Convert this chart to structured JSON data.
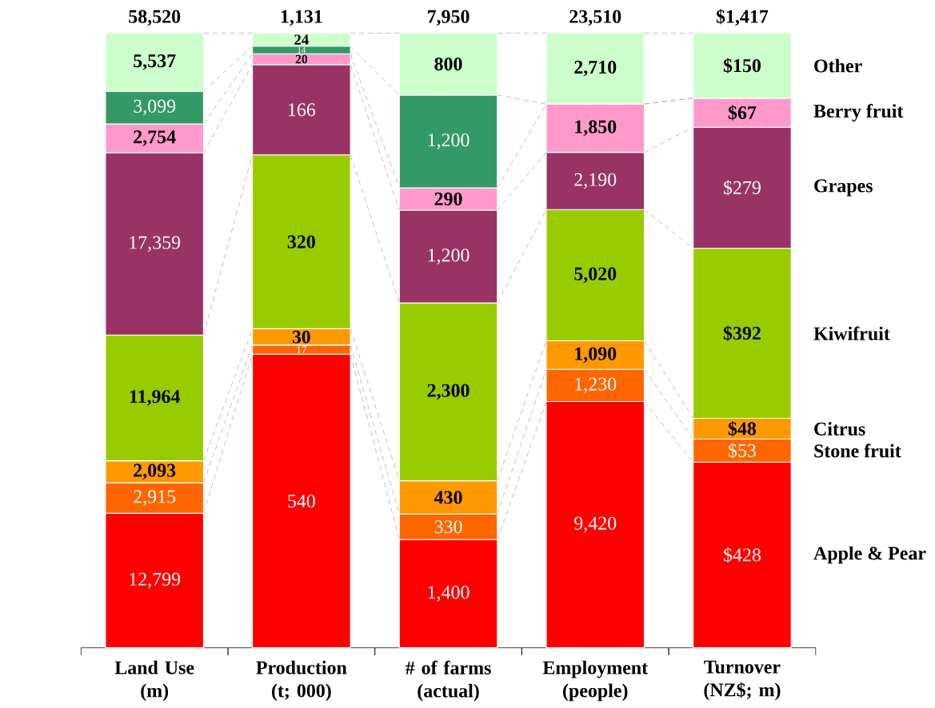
{
  "chart_data": [
    {
      "type": "bar",
      "stacked": true,
      "categories": [
        "Land Use (m)"
      ],
      "series": [
        {
          "color": "#ff0000",
          "values": [
            12799
          ],
          "value_labels": [
            "12,799"
          ]
        },
        {
          "color": "#ff6600",
          "values": [
            2915
          ],
          "value_labels": [
            "2,915"
          ]
        },
        {
          "color": "#ff9900",
          "values": [
            2093
          ],
          "value_labels": [
            "2,093"
          ]
        },
        {
          "color": "#99cc00",
          "values": [
            11964
          ],
          "value_labels": [
            "11,964"
          ]
        },
        {
          "color": "#993366",
          "values": [
            17359
          ],
          "value_labels": [
            "17,359"
          ]
        },
        {
          "color": "#ff99cc",
          "values": [
            2754
          ],
          "value_labels": [
            "2,754"
          ]
        },
        {
          "color": "#339966",
          "values": [
            3099
          ],
          "value_labels": [
            "3,099"
          ]
        },
        {
          "color": "#ccffcc",
          "values": [
            5537
          ],
          "value_labels": [
            "5,537"
          ]
        }
      ],
      "totals": [
        "58,520"
      ]
    },
    {
      "type": "bar",
      "stacked": true,
      "categories": [
        "Production (t; 000)"
      ],
      "series": [
        {
          "color": "#ff0000",
          "values": [
            540
          ],
          "value_labels": [
            "540"
          ]
        },
        {
          "color": "#ff6600",
          "values": [
            17
          ],
          "value_labels": [
            "17"
          ]
        },
        {
          "color": "#ff9900",
          "values": [
            30
          ],
          "value_labels": [
            "30"
          ]
        },
        {
          "color": "#99cc00",
          "values": [
            320
          ],
          "value_labels": [
            "320"
          ]
        },
        {
          "color": "#993366",
          "values": [
            166
          ],
          "value_labels": [
            "166"
          ]
        },
        {
          "color": "#ff99cc",
          "values": [
            20
          ],
          "value_labels": [
            "20"
          ]
        },
        {
          "color": "#339966",
          "values": [
            14
          ],
          "value_labels": [
            "14"
          ]
        },
        {
          "color": "#ccffcc",
          "values": [
            24
          ],
          "value_labels": [
            "24"
          ]
        }
      ],
      "totals": [
        "1,131"
      ]
    },
    {
      "type": "bar",
      "stacked": true,
      "categories": [
        "# of farms (actual)"
      ],
      "series": [
        {
          "color": "#ff0000",
          "values": [
            1400
          ],
          "value_labels": [
            "1,400"
          ]
        },
        {
          "color": "#ff6600",
          "values": [
            330
          ],
          "value_labels": [
            "330"
          ]
        },
        {
          "color": "#ff9900",
          "values": [
            430
          ],
          "value_labels": [
            "430"
          ]
        },
        {
          "color": "#99cc00",
          "values": [
            2300
          ],
          "value_labels": [
            "2,300"
          ]
        },
        {
          "color": "#993366",
          "values": [
            1200
          ],
          "value_labels": [
            "1,200"
          ]
        },
        {
          "color": "#ff99cc",
          "values": [
            290
          ],
          "value_labels": [
            "290"
          ]
        },
        {
          "color": "#339966",
          "values": [
            1200
          ],
          "value_labels": [
            "1,200"
          ]
        },
        {
          "color": "#ccffcc",
          "values": [
            800
          ],
          "value_labels": [
            "800"
          ]
        }
      ],
      "totals": [
        "7,950"
      ]
    },
    {
      "type": "bar",
      "stacked": true,
      "categories": [
        "Employment (people)"
      ],
      "series": [
        {
          "color": "#ff0000",
          "values": [
            9420
          ],
          "value_labels": [
            "9,420"
          ]
        },
        {
          "color": "#ff6600",
          "values": [
            1230
          ],
          "value_labels": [
            "1,230"
          ]
        },
        {
          "color": "#ff9900",
          "values": [
            1090
          ],
          "value_labels": [
            "1,090"
          ]
        },
        {
          "color": "#99cc00",
          "values": [
            5020
          ],
          "value_labels": [
            "5,020"
          ]
        },
        {
          "color": "#993366",
          "values": [
            2190
          ],
          "value_labels": [
            "2,190"
          ]
        },
        {
          "color": "#ff99cc",
          "values": [
            1850
          ],
          "value_labels": [
            "1,850"
          ]
        },
        {
          "color": "#339966",
          "values": [
            null
          ]
        },
        {
          "color": "#ccffcc",
          "values": [
            2710
          ],
          "value_labels": [
            "2,710"
          ]
        }
      ],
      "totals": [
        "23,510"
      ]
    },
    {
      "type": "bar",
      "stacked": true,
      "legend": "right",
      "categories": [
        "Turnover (NZ$; m)"
      ],
      "series": [
        {
          "name": "Apple & Pear",
          "color": "#ff0000",
          "values": [
            428
          ],
          "value_labels": [
            "$428"
          ]
        },
        {
          "name": "Stone fruit",
          "color": "#ff6600",
          "values": [
            53
          ],
          "value_labels": [
            "$53"
          ]
        },
        {
          "name": "Citrus",
          "color": "#ff9900",
          "values": [
            48
          ],
          "value_labels": [
            "$48"
          ]
        },
        {
          "name": "Kiwifruit",
          "color": "#99cc00",
          "values": [
            392
          ],
          "value_labels": [
            "$392"
          ]
        },
        {
          "name": "Grapes",
          "color": "#993366",
          "values": [
            279
          ],
          "value_labels": [
            "$279"
          ]
        },
        {
          "name": "Berry fruit",
          "color": "#ff99cc",
          "values": [
            67
          ],
          "value_labels": [
            "$67"
          ]
        },
        {
          "color": "#339966",
          "values": [
            null
          ]
        },
        {
          "name": "Other",
          "color": "#ccffcc",
          "values": [
            150
          ],
          "value_labels": [
            "$150"
          ]
        }
      ],
      "totals": [
        "$1,417"
      ]
    }
  ]
}
